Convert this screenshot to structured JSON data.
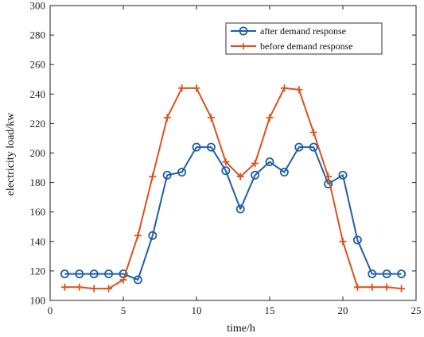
{
  "chart_data": {
    "type": "line",
    "xlabel": "time/h",
    "ylabel": "electricity load/kw",
    "xlim": [
      0,
      25
    ],
    "ylim": [
      100,
      300
    ],
    "xticks": [
      0,
      5,
      10,
      15,
      20,
      25
    ],
    "yticks": [
      100,
      120,
      140,
      160,
      180,
      200,
      220,
      240,
      260,
      280,
      300
    ],
    "grid": false,
    "legend_position": "top-right",
    "x": [
      1,
      2,
      3,
      4,
      5,
      6,
      7,
      8,
      9,
      10,
      11,
      12,
      13,
      14,
      15,
      16,
      17,
      18,
      19,
      20,
      21,
      22,
      23,
      24
    ],
    "series": [
      {
        "name": "after demand response",
        "color": "#1f5fa6",
        "marker": "circle",
        "values": [
          118,
          118,
          118,
          118,
          118,
          114,
          144,
          185,
          187,
          204,
          204,
          188,
          162,
          185,
          194,
          187,
          204,
          204,
          179,
          185,
          141,
          118,
          118,
          118
        ]
      },
      {
        "name": "before demand response",
        "color": "#d9531e",
        "marker": "plus",
        "values": [
          109,
          109,
          108,
          108,
          114,
          144,
          184,
          224,
          244,
          244,
          224,
          194,
          184,
          193,
          224,
          244,
          243,
          214,
          184,
          140,
          109,
          109,
          109,
          108
        ]
      }
    ]
  }
}
